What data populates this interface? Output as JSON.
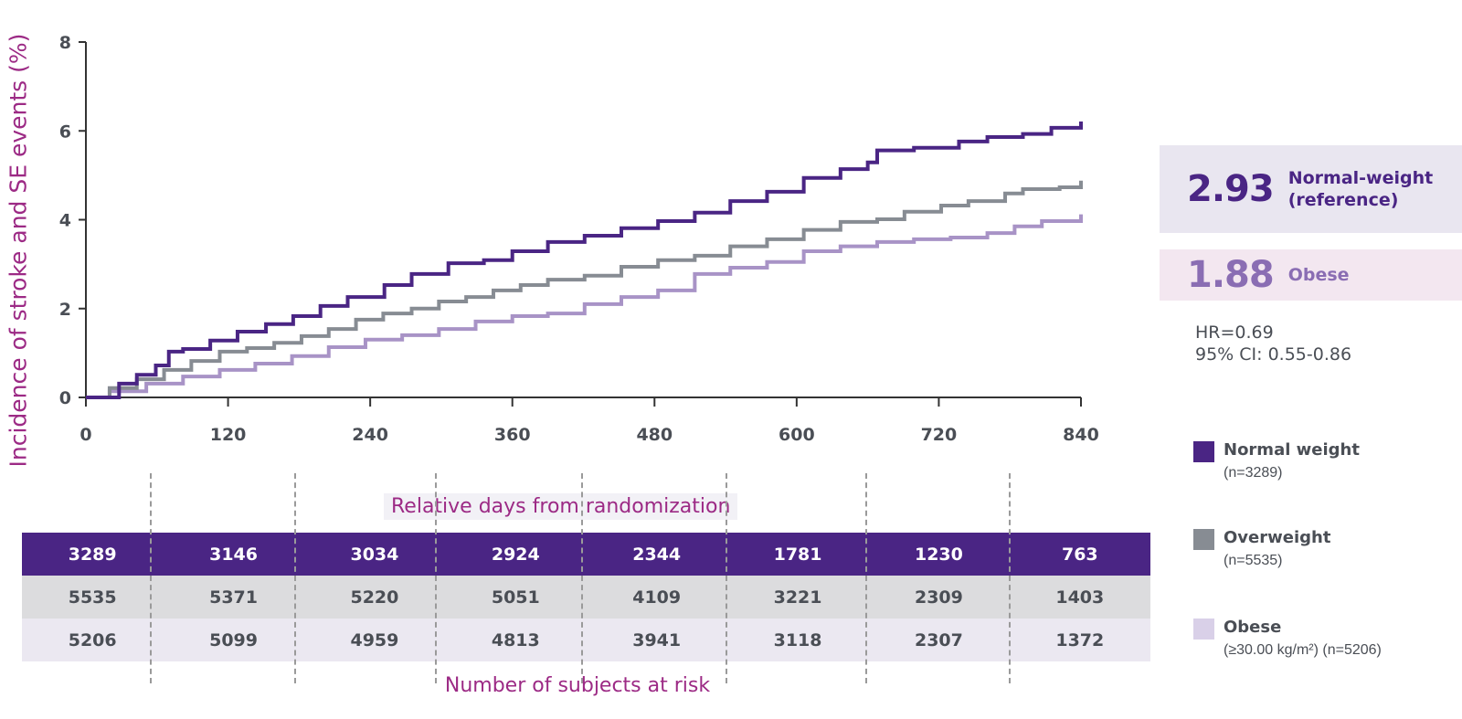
{
  "chart_data": {
    "type": "line",
    "step": true,
    "ylabel": "Incidence of stroke and SE events (%)",
    "xlabel": "Relative days from randomization",
    "xlim": [
      0,
      840
    ],
    "ylim": [
      0,
      8
    ],
    "xticks": [
      0,
      120,
      240,
      360,
      480,
      600,
      720,
      840
    ],
    "yticks": [
      0,
      2,
      4,
      6,
      8
    ],
    "grid": false,
    "legend_position": "right",
    "series": [
      {
        "name": "Normal weight",
        "color": "#4a2584",
        "x": [
          0,
          28,
          43,
          59,
          70,
          82,
          105,
          128,
          152,
          175,
          198,
          221,
          252,
          275,
          306,
          336,
          360,
          390,
          421,
          452,
          483,
          514,
          544,
          575,
          606,
          637,
          660,
          668,
          699,
          737,
          761,
          791,
          815,
          840
        ],
        "y": [
          0,
          0.31,
          0.51,
          0.72,
          1.03,
          1.09,
          1.28,
          1.48,
          1.65,
          1.83,
          2.06,
          2.26,
          2.53,
          2.78,
          3.02,
          3.09,
          3.29,
          3.5,
          3.64,
          3.81,
          3.97,
          4.16,
          4.42,
          4.63,
          4.94,
          5.14,
          5.29,
          5.56,
          5.62,
          5.76,
          5.86,
          5.93,
          6.07,
          6.21
        ]
      },
      {
        "name": "Overweight",
        "color": "#878c93",
        "x": [
          0,
          20,
          43,
          66,
          89,
          113,
          136,
          159,
          182,
          205,
          228,
          251,
          275,
          298,
          321,
          344,
          367,
          390,
          421,
          452,
          483,
          514,
          544,
          575,
          606,
          637,
          668,
          691,
          722,
          745,
          776,
          791,
          822,
          840
        ],
        "y": [
          0,
          0.21,
          0.41,
          0.62,
          0.82,
          1.03,
          1.11,
          1.23,
          1.38,
          1.54,
          1.75,
          1.89,
          2.0,
          2.16,
          2.26,
          2.41,
          2.53,
          2.65,
          2.74,
          2.94,
          3.09,
          3.19,
          3.4,
          3.56,
          3.77,
          3.95,
          4.01,
          4.18,
          4.32,
          4.42,
          4.59,
          4.69,
          4.73,
          4.88
        ]
      },
      {
        "name": "Obese",
        "color": "#a893c6",
        "x": [
          0,
          20,
          51,
          82,
          113,
          143,
          174,
          205,
          236,
          267,
          298,
          329,
          360,
          390,
          421,
          452,
          483,
          514,
          544,
          575,
          606,
          637,
          668,
          699,
          730,
          761,
          784,
          807,
          840
        ],
        "y": [
          0,
          0.14,
          0.31,
          0.47,
          0.62,
          0.76,
          0.93,
          1.13,
          1.3,
          1.4,
          1.54,
          1.71,
          1.83,
          1.89,
          2.1,
          2.26,
          2.41,
          2.78,
          2.92,
          3.05,
          3.29,
          3.4,
          3.5,
          3.56,
          3.6,
          3.7,
          3.85,
          3.97,
          4.12
        ]
      }
    ]
  },
  "hazard": {
    "normal": {
      "value": "2.93",
      "label_line1": "Normal-weight",
      "label_line2": "(reference)"
    },
    "obese": {
      "value": "1.88",
      "label": "Obese"
    },
    "hr": "HR=0.69",
    "ci": "95% CI: 0.55-0.86"
  },
  "legend": [
    {
      "name": "Normal weight",
      "n": "(n=3289)",
      "color": "#4a2584"
    },
    {
      "name": "Overweight",
      "n": "(n=5535)",
      "color": "#878c93"
    },
    {
      "name": "Obese",
      "n": "(≥30.00 kg/m²) (n=5206)",
      "color": "#d9d0e8"
    }
  ],
  "risk_table": {
    "title": "Number of subjects at risk",
    "rows": [
      [
        "3289",
        "3146",
        "3034",
        "2924",
        "2344",
        "1781",
        "1230",
        "763"
      ],
      [
        "5535",
        "5371",
        "5220",
        "5051",
        "4109",
        "3221",
        "2309",
        "1403"
      ],
      [
        "5206",
        "5099",
        "4959",
        "4813",
        "3941",
        "3118",
        "2307",
        "1372"
      ]
    ]
  }
}
